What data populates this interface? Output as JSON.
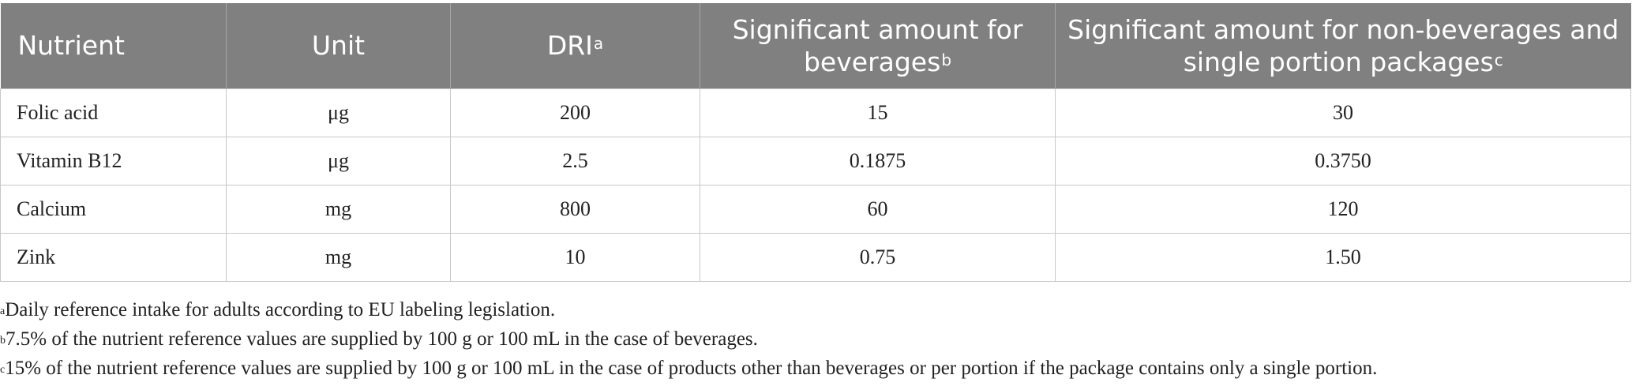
{
  "table": {
    "headers": [
      {
        "text": "Nutrient",
        "sup": ""
      },
      {
        "text": "Unit",
        "sup": ""
      },
      {
        "text": "DRI",
        "sup": "a"
      },
      {
        "text": "Significant amount for beverages",
        "sup": "b"
      },
      {
        "text": "Significant amount for non-beverages and single portion packages",
        "sup": "c"
      }
    ],
    "rows": [
      [
        "Folic acid",
        "μg",
        "200",
        "15",
        "30"
      ],
      [
        "Vitamin B12",
        "μg",
        "2.5",
        "0.1875",
        "0.3750"
      ],
      [
        "Calcium",
        "mg",
        "800",
        "60",
        "120"
      ],
      [
        "Zink",
        "mg",
        "10",
        "0.75",
        "1.50"
      ]
    ]
  },
  "footnotes": [
    {
      "mark": "a",
      "text": "Daily reference intake for adults according to EU labeling legislation."
    },
    {
      "mark": "b",
      "text": "7.5% of the nutrient reference values are supplied by 100 g or 100 mL in the case of beverages."
    },
    {
      "mark": "c",
      "text": "15% of the nutrient reference values are supplied by 100 g or 100 mL in the case of products other than beverages or per portion if the package contains only a single portion."
    }
  ]
}
